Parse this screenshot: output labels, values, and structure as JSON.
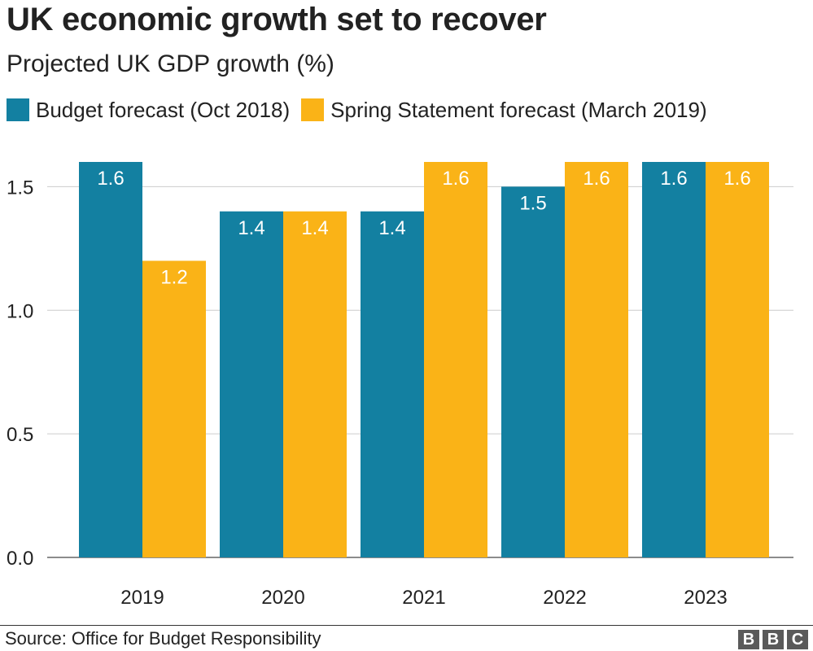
{
  "header": {
    "title": "UK economic growth set to recover",
    "subtitle": "Projected UK GDP growth (%)"
  },
  "legend": [
    {
      "label": "Budget forecast (Oct 2018)",
      "color": "#1380a1"
    },
    {
      "label": "Spring Statement forecast (March 2019)",
      "color": "#fab317"
    }
  ],
  "chart_data": {
    "type": "bar",
    "title": "UK economic growth set to recover",
    "subtitle": "Projected UK GDP growth (%)",
    "categories": [
      "2019",
      "2020",
      "2021",
      "2022",
      "2023"
    ],
    "series": [
      {
        "name": "Budget forecast (Oct 2018)",
        "values": [
          1.6,
          1.4,
          1.4,
          1.5,
          1.6
        ],
        "labels": [
          "1.6",
          "1.4",
          "1.4",
          "1.5",
          "1.6"
        ],
        "color": "#1380a1"
      },
      {
        "name": "Spring Statement forecast (March 2019)",
        "values": [
          1.2,
          1.4,
          1.6,
          1.6,
          1.6
        ],
        "labels": [
          "1.2",
          "1.4",
          "1.6",
          "1.6",
          "1.6"
        ],
        "color": "#fab317"
      }
    ],
    "yticks": [
      0.0,
      0.5,
      1.0,
      1.5
    ],
    "ytick_labels": [
      "0.0",
      "0.5",
      "1.0",
      "1.5"
    ],
    "ylim": [
      0,
      1.6
    ],
    "grid": true,
    "legend_position": "top-left"
  },
  "footer": {
    "source": "Source: Office for Budget Responsibility",
    "logo_letters": [
      "B",
      "B",
      "C"
    ]
  }
}
